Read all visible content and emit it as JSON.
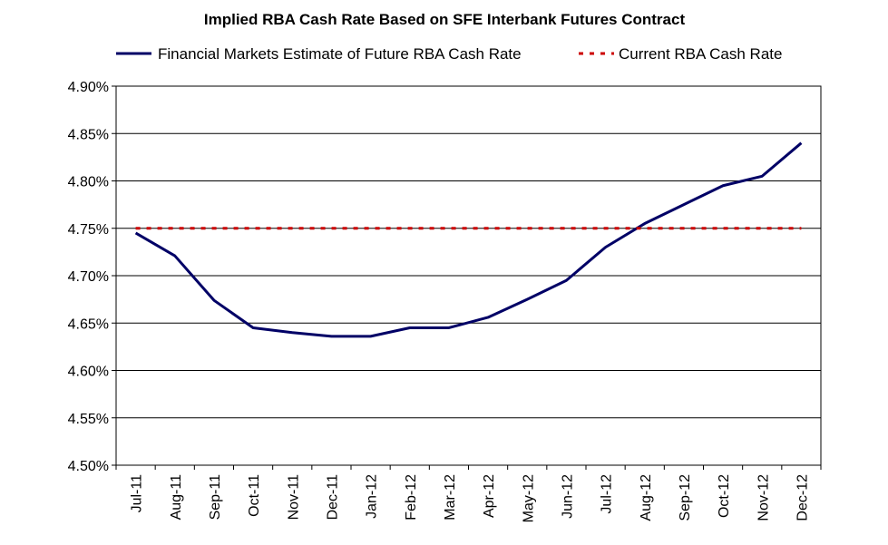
{
  "chart_data": {
    "type": "line",
    "title": "Implied RBA Cash Rate Based on SFE Interbank Futures Contract",
    "xlabel": "",
    "ylabel": "",
    "categories": [
      "Jul-11",
      "Aug-11",
      "Sep-11",
      "Oct-11",
      "Nov-11",
      "Dec-11",
      "Jan-12",
      "Feb-12",
      "Mar-12",
      "Apr-12",
      "May-12",
      "Jun-12",
      "Jul-12",
      "Aug-12",
      "Sep-12",
      "Oct-12",
      "Nov-12",
      "Dec-12"
    ],
    "ylim": [
      4.5,
      4.9
    ],
    "yticks": [
      4.5,
      4.55,
      4.6,
      4.65,
      4.7,
      4.75,
      4.8,
      4.85,
      4.9
    ],
    "ytick_labels": [
      "4.50%",
      "4.55%",
      "4.60%",
      "4.65%",
      "4.70%",
      "4.75%",
      "4.80%",
      "4.85%",
      "4.90%"
    ],
    "grid": "horizontal",
    "legend_position": "top",
    "series": [
      {
        "name": "Financial Markets Estimate of Future RBA Cash Rate",
        "style": "solid",
        "color": "#000066",
        "values": [
          4.745,
          4.721,
          4.674,
          4.645,
          4.64,
          4.636,
          4.636,
          4.645,
          4.645,
          4.656,
          4.675,
          4.695,
          4.73,
          4.755,
          4.775,
          4.795,
          4.805,
          4.84
        ]
      },
      {
        "name": "Current RBA Cash Rate",
        "style": "dashed",
        "color": "#cc0000",
        "values": [
          4.75,
          4.75,
          4.75,
          4.75,
          4.75,
          4.75,
          4.75,
          4.75,
          4.75,
          4.75,
          4.75,
          4.75,
          4.75,
          4.75,
          4.75,
          4.75,
          4.75,
          4.75
        ]
      }
    ]
  }
}
